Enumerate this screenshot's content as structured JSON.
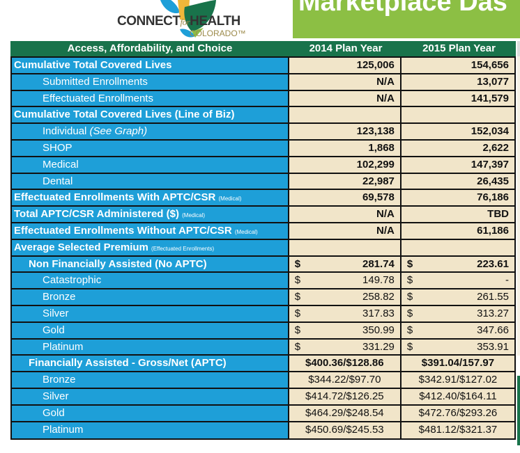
{
  "logo": {
    "name": "CONNECT for HEALTH COLORADO",
    "main_left": "CONNECT",
    "for": "for",
    "main_right": "HEALTH",
    "sub": "COLORADO™",
    "colors": {
      "blue": "#1e9fd8",
      "green": "#19734b",
      "yellow": "#f0b73a",
      "light_green": "#8cbf44"
    }
  },
  "banner": {
    "title": "Marketplace Das",
    "color": "#8cbf44"
  },
  "table": {
    "headers": [
      "Access, Affordability, and Choice",
      "2014 Plan Year",
      "2015 Plan Year"
    ],
    "colors": {
      "header": "#19734b",
      "label": "#1e9fd8",
      "value": "#f1e5c9"
    },
    "currency_symbol": "$",
    "rows": [
      {
        "label": "Cumulative Total Covered Lives",
        "level": 0,
        "type": "num",
        "bold": true,
        "v2014": "125,006",
        "v2015": "154,656"
      },
      {
        "label": "Submitted Enrollments",
        "level": 2,
        "type": "num",
        "bold": true,
        "v2014": "N/A",
        "v2015": "13,077"
      },
      {
        "label": "Effectuated Enrollments",
        "level": 2,
        "type": "num",
        "bold": true,
        "v2014": "N/A",
        "v2015": "141,579"
      },
      {
        "label": "Cumulative Total Covered Lives (Line of Biz)",
        "level": 0,
        "type": "num",
        "v2014": "",
        "v2015": ""
      },
      {
        "label": "Individual ",
        "inote": "(See Graph)",
        "level": 2,
        "type": "num",
        "bold": true,
        "v2014": "123,138",
        "v2015": "152,034"
      },
      {
        "label": "SHOP",
        "level": 2,
        "type": "num",
        "bold": true,
        "v2014": "1,868",
        "v2015": "2,622"
      },
      {
        "label": "Medical",
        "level": 2,
        "type": "num",
        "bold": true,
        "v2014": "102,299",
        "v2015": "147,397"
      },
      {
        "label": "Dental",
        "level": 2,
        "type": "num",
        "bold": true,
        "v2014": "22,987",
        "v2015": "26,435"
      },
      {
        "label": "Effectuated Enrollments With APTC/CSR ",
        "note": "(Medical)",
        "level": 0,
        "type": "num",
        "bold": true,
        "v2014": "69,578",
        "v2015": "76,186"
      },
      {
        "label": "Total APTC/CSR Administered ($) ",
        "note": "(Medical)",
        "level": 0,
        "type": "num",
        "bold": true,
        "v2014": "N/A",
        "v2015": "TBD"
      },
      {
        "label": "Effectuated Enrollments Without APTC/CSR ",
        "note": "(Medical)",
        "level": 0,
        "type": "num",
        "bold": true,
        "v2014": "N/A",
        "v2015": "61,186"
      },
      {
        "label": "Average Selected Premium ",
        "note": "(Effectuated Enrollments)",
        "level": 0,
        "type": "num",
        "v2014": "",
        "v2015": ""
      },
      {
        "label": "Non Financially Assisted (No APTC)",
        "level": 1,
        "type": "dollar",
        "bold": true,
        "v2014": "281.74",
        "v2015": "223.61"
      },
      {
        "label": "Catastrophic",
        "level": 2,
        "type": "dollar",
        "v2014": "149.78",
        "v2015": "-"
      },
      {
        "label": "Bronze",
        "level": 2,
        "type": "dollar",
        "v2014": "258.82",
        "v2015": "261.55"
      },
      {
        "label": "Silver",
        "level": 2,
        "type": "dollar",
        "v2014": "317.83",
        "v2015": "313.27"
      },
      {
        "label": "Gold",
        "level": 2,
        "type": "dollar",
        "v2014": "350.99",
        "v2015": "347.66"
      },
      {
        "label": "Platinum",
        "level": 2,
        "type": "dollar",
        "v2014": "331.29",
        "v2015": "353.91"
      },
      {
        "label": "Financially Assisted - Gross/Net (APTC)",
        "level": 1,
        "type": "center",
        "bold": true,
        "v2014": "$400.36/$128.86",
        "v2015": "$391.04/157.97"
      },
      {
        "label": "Bronze",
        "level": 2,
        "type": "center",
        "v2014": "$344.22/$97.70",
        "v2015": "$342.91/$127.02"
      },
      {
        "label": "Silver",
        "level": 2,
        "type": "center",
        "v2014": "$414.72/$126.25",
        "v2015": "$412.40/$164.11"
      },
      {
        "label": "Gold",
        "level": 2,
        "type": "center",
        "v2014": "$464.29/$248.54",
        "v2015": "$472.76/$293.26"
      },
      {
        "label": "Platinum",
        "level": 2,
        "type": "center",
        "v2014": "$450.69/$245.53",
        "v2015": "$481.12/$321.37"
      }
    ]
  }
}
